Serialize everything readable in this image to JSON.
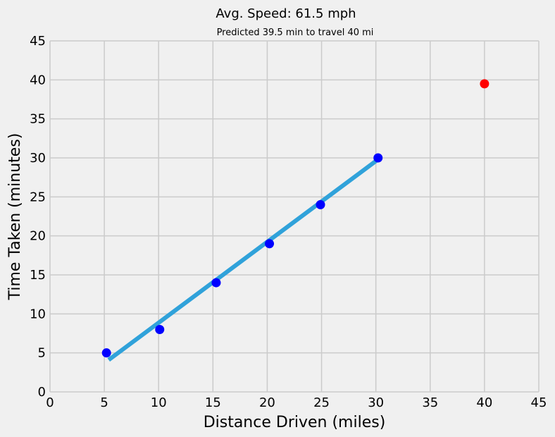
{
  "chart_data": {
    "type": "scatter",
    "title": "Avg. Speed:  61.5 mph",
    "subtitle": "Predicted 39.5 min to travel 40 mi",
    "xlabel": "Distance Driven (miles)",
    "ylabel": "Time Taken (minutes)",
    "xlim": [
      0,
      45
    ],
    "ylim": [
      0,
      45
    ],
    "xticks": [
      0,
      5,
      10,
      15,
      20,
      25,
      30,
      35,
      40,
      45
    ],
    "yticks": [
      0,
      5,
      10,
      15,
      20,
      25,
      30,
      35,
      40,
      45
    ],
    "grid": true,
    "series": [
      {
        "kind": "scatter",
        "color": "#0000ff",
        "x": [
          5.2,
          10.1,
          15.3,
          20.2,
          24.9,
          30.2
        ],
        "y": [
          5,
          8,
          14,
          19,
          24,
          30
        ]
      },
      {
        "kind": "line",
        "color": "#30a2da",
        "x": [
          5.4,
          30.2
        ],
        "y": [
          4.1,
          29.8
        ]
      },
      {
        "kind": "scatter",
        "color": "#ff0000",
        "x": [
          40
        ],
        "y": [
          39.5
        ]
      }
    ]
  }
}
